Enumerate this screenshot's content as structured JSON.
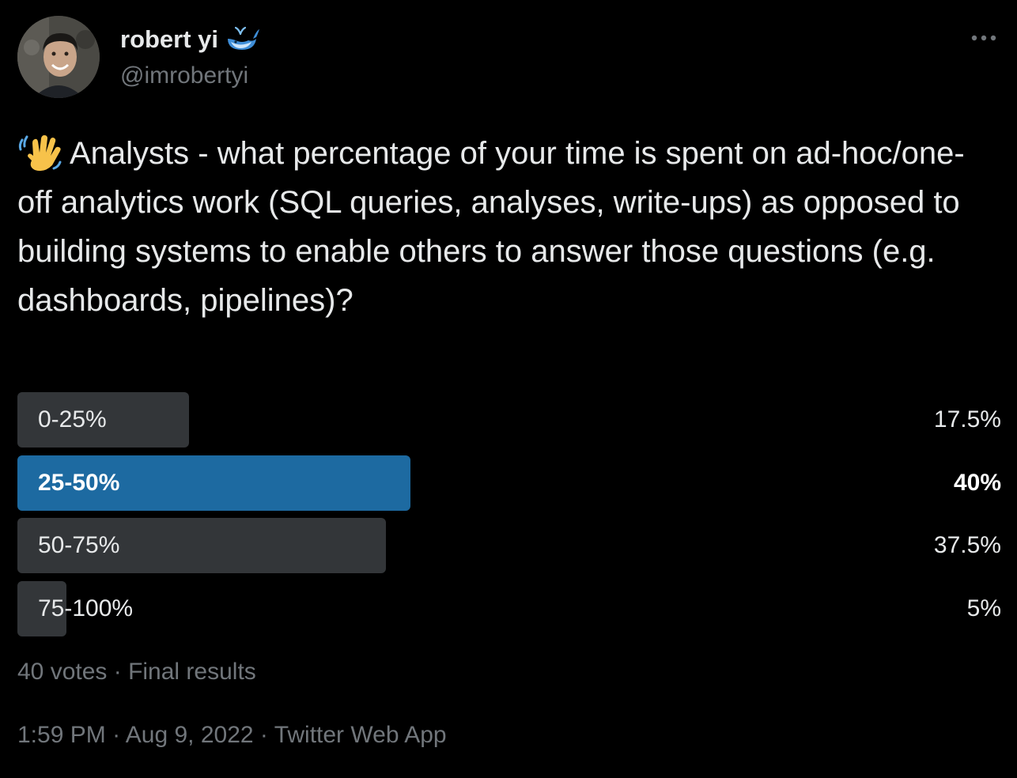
{
  "author": {
    "name": "robert yi",
    "handle": "@imrobertyi",
    "badge_icon": "whale-icon",
    "avatar_icon": "avatar"
  },
  "more_icon": "more-horizontal-icon",
  "tweet": {
    "emoji_icon": "waving-hand-icon",
    "text": "Analysts - what percentage of your time is spent on ad-hoc/one-off analytics work (SQL queries, analyses, write-ups) as opposed to building systems to enable others to answer those questions (e.g. dashboards, pipelines)?"
  },
  "poll": {
    "options": [
      {
        "label": "0-25%",
        "percent_label": "17.5%",
        "percent": 17.5,
        "winner": false
      },
      {
        "label": "25-50%",
        "percent_label": "40%",
        "percent": 40,
        "winner": true
      },
      {
        "label": "50-75%",
        "percent_label": "37.5%",
        "percent": 37.5,
        "winner": false
      },
      {
        "label": "75-100%",
        "percent_label": "5%",
        "percent": 5,
        "winner": false
      }
    ],
    "summary": "40 votes · Final results"
  },
  "meta": {
    "time": "1:59 PM",
    "date": "Aug 9, 2022",
    "source": "Twitter Web App",
    "separator": " · "
  },
  "colors": {
    "background": "#000000",
    "text": "#e7e9ea",
    "muted": "#71767b",
    "bar": "#333639",
    "winner_bar": "#1d6aa1"
  }
}
